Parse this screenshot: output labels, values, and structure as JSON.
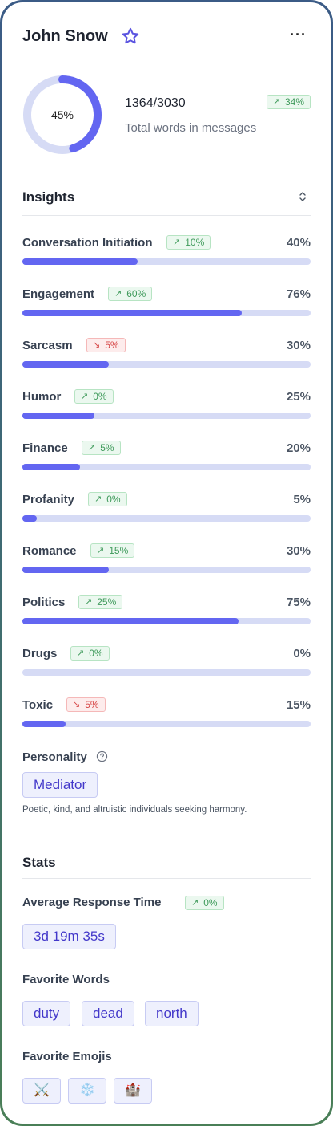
{
  "profile": {
    "name": "John Snow",
    "more_label": "···"
  },
  "summary": {
    "donut_label": "45%",
    "donut_fraction": 0.45,
    "count": "1364/3030",
    "count_description": "Total words in messages",
    "change": "34%",
    "change_direction": "up"
  },
  "insights": {
    "title": "Insights",
    "items": [
      {
        "label": "Conversation Initiation",
        "change": "10%",
        "direction": "up",
        "value": "40%",
        "fraction": 0.4
      },
      {
        "label": "Engagement",
        "change": "60%",
        "direction": "up",
        "value": "76%",
        "fraction": 0.76
      },
      {
        "label": "Sarcasm",
        "change": "5%",
        "direction": "down",
        "value": "30%",
        "fraction": 0.3
      },
      {
        "label": "Humor",
        "change": "0%",
        "direction": "up",
        "value": "25%",
        "fraction": 0.25
      },
      {
        "label": "Finance",
        "change": "5%",
        "direction": "up",
        "value": "20%",
        "fraction": 0.2
      },
      {
        "label": "Profanity",
        "change": "0%",
        "direction": "up",
        "value": "5%",
        "fraction": 0.05
      },
      {
        "label": "Romance",
        "change": "15%",
        "direction": "up",
        "value": "30%",
        "fraction": 0.3
      },
      {
        "label": "Politics",
        "change": "25%",
        "direction": "up",
        "value": "75%",
        "fraction": 0.75
      },
      {
        "label": "Drugs",
        "change": "0%",
        "direction": "up",
        "value": "0%",
        "fraction": 0.0
      },
      {
        "label": "Toxic",
        "change": "5%",
        "direction": "down",
        "value": "15%",
        "fraction": 0.15
      }
    ]
  },
  "personality": {
    "label": "Personality",
    "type": "Mediator",
    "description": "Poetic, kind, and altruistic individuals seeking harmony."
  },
  "stats": {
    "title": "Stats",
    "avg_response_label": "Average Response Time",
    "avg_response_change": "0%",
    "avg_response_direction": "up",
    "avg_response_value": "3d 19m 35s",
    "favorite_words_label": "Favorite Words",
    "favorite_words": [
      "duty",
      "dead",
      "north"
    ],
    "favorite_emojis_label": "Favorite Emojis",
    "favorite_emojis": [
      "⚔️",
      "❄️",
      "🏰"
    ]
  },
  "colors": {
    "accent": "#6366f1",
    "track": "#d6dbf5",
    "up": "#3f9a5b",
    "down": "#d64545"
  }
}
